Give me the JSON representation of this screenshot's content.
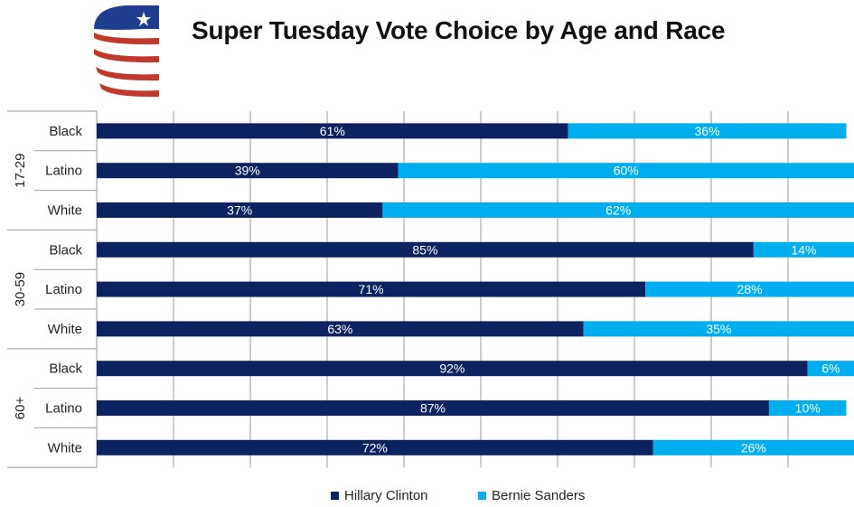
{
  "chart_data": {
    "type": "bar",
    "stacked": true,
    "orientation": "horizontal",
    "title": "Super Tuesday Vote Choice by Age and Race",
    "groups": [
      "17-29",
      "30-59",
      "60+"
    ],
    "categories": [
      "Black",
      "Latino",
      "White"
    ],
    "series": [
      {
        "name": "Hillary Clinton",
        "color": "#0d2260",
        "values": [
          [
            61,
            39,
            37
          ],
          [
            85,
            71,
            63
          ],
          [
            92,
            87,
            72
          ]
        ],
        "labels": [
          [
            "61%",
            "39%",
            "37%"
          ],
          [
            "85%",
            "71%",
            "63%"
          ],
          [
            "92%",
            "87%",
            "72%"
          ]
        ]
      },
      {
        "name": "Bernie Sanders",
        "color": "#00aeef",
        "values": [
          [
            36,
            60,
            62
          ],
          [
            14,
            28,
            35
          ],
          [
            6,
            10,
            26
          ]
        ],
        "labels": [
          [
            "36%",
            "60%",
            "62%"
          ],
          [
            "14%",
            "28%",
            "35%"
          ],
          [
            "6%",
            "10%",
            "26%"
          ]
        ]
      }
    ],
    "xlim": [
      0,
      98
    ],
    "grid": true,
    "legend_position": "bottom"
  }
}
